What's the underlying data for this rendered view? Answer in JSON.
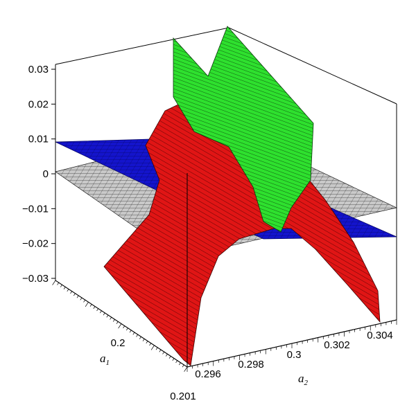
{
  "chart_data": {
    "type": "surface3d",
    "title": "",
    "axes": {
      "z": {
        "ticks": [
          "0.03",
          "0.02",
          "0.01",
          "0",
          "−0.01",
          "−0.02",
          "−0.03"
        ],
        "range": [
          -0.035,
          0.035
        ]
      },
      "a1": {
        "label": "a",
        "subscript": "1",
        "ticks": [
          "0.2",
          "0.201"
        ]
      },
      "a2": {
        "label": "a",
        "subscript": "2",
        "ticks": [
          "0.296",
          "0.298",
          "0.3",
          "0.302",
          "0.304"
        ]
      }
    },
    "surfaces": [
      {
        "name": "grey-plane",
        "color": "#c8c8c8",
        "z_level": 0
      },
      {
        "name": "blue-plane",
        "color": "#1a1ad0",
        "description_z": "tilted plane"
      },
      {
        "name": "red-surface",
        "color": "#e01010"
      },
      {
        "name": "green-surface",
        "color": "#22e022"
      }
    ]
  }
}
